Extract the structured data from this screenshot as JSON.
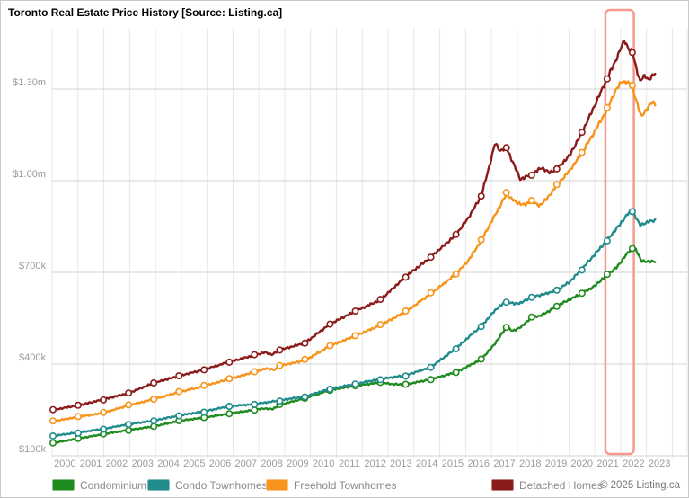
{
  "title": "Toronto Real Estate Price History [Source: Listing.ca]",
  "copyright": "© 2025 Listing.ca",
  "colors": {
    "background": "#ffffff",
    "frame_border": "#c9c9c9",
    "grid_vertical": "#e8e8e8",
    "grid_horizontal": "#d3d3d3",
    "axis_label": "#9b9b9b",
    "legend_text": "#898989",
    "title_text": "#000000",
    "highlight_box": "#f59a8e",
    "condominiums": "#1e8b1e",
    "condo_townhomes": "#208c8c",
    "freehold_townhomes": "#f8941c",
    "detached_homes": "#8b1b1b"
  },
  "legend": [
    {
      "label": "Condominiums",
      "color": "#1e8b1e"
    },
    {
      "label": "Condo Townhomes",
      "color": "#208c8c"
    },
    {
      "label": "Freehold Townhomes",
      "color": "#f8941c"
    },
    {
      "label": "Detached Homes",
      "color": "#8b1b1b"
    }
  ],
  "chart_data": {
    "type": "line",
    "title": "Toronto Real Estate Price History [Source: Listing.ca]",
    "unit": "average price in thousands of dollars",
    "years": [
      2000,
      2001,
      2002,
      2003,
      2004,
      2005,
      2006,
      2007,
      2008,
      2009,
      2010,
      2011,
      2012,
      2013,
      2014,
      2015,
      2016,
      2017,
      2018,
      2019,
      2020,
      2021,
      2022,
      2023
    ],
    "y_axis": {
      "tick_labels": [
        "$1.30m",
        "$1.00m",
        "$700k",
        "$400k",
        "$100k"
      ],
      "tick_values_k": [
        1300,
        1000,
        700,
        400,
        100
      ],
      "range_k": [
        100,
        1500
      ]
    },
    "x_axis": {
      "tick_labels": [
        "2000",
        "2001",
        "2002",
        "2003",
        "2004",
        "2005",
        "2006",
        "2007",
        "2008",
        "2009",
        "2010",
        "2011",
        "2012",
        "2013",
        "2014",
        "2015",
        "2016",
        "2017",
        "2018",
        "2019",
        "2020",
        "2021",
        "2022",
        "2023"
      ]
    },
    "grid": true,
    "legend_position": "bottom",
    "marker": "open-circle",
    "highlight_box": {
      "t_start": 21.93,
      "t_end": 23.06,
      "around_label": "2022"
    },
    "notable_values_k": {
      "detached_2017_spike": 1123,
      "detached_2022_peak": 1460,
      "freehold_2022_peak": 1325,
      "condo_townhome_2022_peak": 902,
      "condominium_2022_peak": 780
    },
    "series": [
      {
        "name": "Condominiums",
        "color": "#1e8b1e",
        "values_k": [
          142,
          156,
          171,
          184,
          196,
          214,
          225,
          238,
          250,
          267,
          288,
          315,
          329,
          340,
          333,
          350,
          373,
          415,
          520,
          554,
          590,
          631,
          692,
          780
        ],
        "detail_points_k": [
          [
            0,
            142
          ],
          [
            1,
            156
          ],
          [
            2,
            171
          ],
          [
            3,
            184
          ],
          [
            4,
            196
          ],
          [
            5,
            214
          ],
          [
            6,
            225
          ],
          [
            7,
            238
          ],
          [
            8,
            250
          ],
          [
            8.4,
            255
          ],
          [
            8.7,
            252
          ],
          [
            9,
            267
          ],
          [
            10,
            288
          ],
          [
            11,
            315
          ],
          [
            12,
            329
          ],
          [
            13,
            340
          ],
          [
            13.5,
            334
          ],
          [
            14,
            333
          ],
          [
            15,
            350
          ],
          [
            16,
            373
          ],
          [
            17,
            415
          ],
          [
            17.5,
            462
          ],
          [
            18,
            520
          ],
          [
            18.25,
            508
          ],
          [
            18.6,
            522
          ],
          [
            19,
            554
          ],
          [
            19.35,
            558
          ],
          [
            19.7,
            574
          ],
          [
            20,
            590
          ],
          [
            21,
            631
          ],
          [
            21.5,
            655
          ],
          [
            22,
            692
          ],
          [
            22.4,
            718
          ],
          [
            22.7,
            752
          ],
          [
            23,
            780
          ],
          [
            23.15,
            772
          ],
          [
            23.35,
            739
          ],
          [
            23.6,
            734
          ],
          [
            23.8,
            737
          ],
          [
            23.93,
            736
          ]
        ]
      },
      {
        "name": "Condo Townhomes",
        "color": "#208c8c",
        "values_k": [
          165,
          176,
          188,
          203,
          215,
          232,
          245,
          262,
          269,
          281,
          294,
          319,
          335,
          351,
          363,
          390,
          451,
          524,
          606,
          620,
          642,
          711,
          806,
          902
        ],
        "detail_points_k": [
          [
            0,
            165
          ],
          [
            1,
            176
          ],
          [
            2,
            188
          ],
          [
            3,
            203
          ],
          [
            4,
            215
          ],
          [
            5,
            232
          ],
          [
            6,
            245
          ],
          [
            7,
            262
          ],
          [
            8,
            269
          ],
          [
            9,
            281
          ],
          [
            10,
            294
          ],
          [
            11,
            319
          ],
          [
            12,
            335
          ],
          [
            13,
            351
          ],
          [
            14,
            363
          ],
          [
            15,
            390
          ],
          [
            16,
            451
          ],
          [
            16.5,
            488
          ],
          [
            17,
            524
          ],
          [
            17.6,
            580
          ],
          [
            18,
            606
          ],
          [
            18.3,
            597
          ],
          [
            18.6,
            601
          ],
          [
            19,
            620
          ],
          [
            19.5,
            628
          ],
          [
            20,
            642
          ],
          [
            20.5,
            668
          ],
          [
            21,
            711
          ],
          [
            21.5,
            758
          ],
          [
            22,
            806
          ],
          [
            22.5,
            856
          ],
          [
            22.8,
            890
          ],
          [
            23,
            902
          ],
          [
            23.3,
            855
          ],
          [
            23.5,
            861
          ],
          [
            23.7,
            867
          ],
          [
            23.93,
            871
          ]
        ]
      },
      {
        "name": "Freehold Townhomes",
        "color": "#f8941c",
        "values_k": [
          213,
          227,
          240,
          265,
          285,
          308,
          328,
          351,
          374,
          394,
          412,
          459,
          492,
          527,
          571,
          630,
          694,
          804,
          956,
          933,
          985,
          1091,
          1233,
          1307
        ],
        "detail_points_k": [
          [
            0,
            213
          ],
          [
            1,
            227
          ],
          [
            2,
            240
          ],
          [
            3,
            265
          ],
          [
            4,
            285
          ],
          [
            5,
            308
          ],
          [
            6,
            328
          ],
          [
            7,
            351
          ],
          [
            8,
            374
          ],
          [
            8.5,
            386
          ],
          [
            8.8,
            380
          ],
          [
            9,
            394
          ],
          [
            10,
            412
          ],
          [
            11,
            459
          ],
          [
            12,
            492
          ],
          [
            13,
            527
          ],
          [
            14,
            571
          ],
          [
            15,
            630
          ],
          [
            16,
            694
          ],
          [
            16.5,
            740
          ],
          [
            17,
            804
          ],
          [
            17.5,
            880
          ],
          [
            18,
            956
          ],
          [
            18.4,
            928
          ],
          [
            18.75,
            921
          ],
          [
            19,
            933
          ],
          [
            19.3,
            918
          ],
          [
            19.6,
            940
          ],
          [
            20,
            985
          ],
          [
            20.5,
            1032
          ],
          [
            21,
            1091
          ],
          [
            21.5,
            1160
          ],
          [
            22,
            1233
          ],
          [
            22.35,
            1298
          ],
          [
            22.6,
            1325
          ],
          [
            22.85,
            1320
          ],
          [
            23,
            1307
          ],
          [
            23.35,
            1209
          ],
          [
            23.6,
            1237
          ],
          [
            23.78,
            1256
          ],
          [
            23.93,
            1250
          ]
        ]
      },
      {
        "name": "Detached Homes",
        "color": "#8b1b1b",
        "values_k": [
          250,
          265,
          284,
          305,
          338,
          361,
          382,
          407,
          429,
          446,
          469,
          531,
          573,
          610,
          686,
          750,
          823,
          949,
          1108,
          1020,
          1037,
          1157,
          1335,
          1420
        ],
        "detail_points_k": [
          [
            0,
            250
          ],
          [
            1,
            265
          ],
          [
            2,
            284
          ],
          [
            3,
            305
          ],
          [
            4,
            338
          ],
          [
            5,
            361
          ],
          [
            6,
            382
          ],
          [
            7,
            407
          ],
          [
            8,
            429
          ],
          [
            8.4,
            438
          ],
          [
            8.7,
            431
          ],
          [
            9,
            446
          ],
          [
            10,
            469
          ],
          [
            11,
            531
          ],
          [
            12,
            573
          ],
          [
            13,
            610
          ],
          [
            14,
            686
          ],
          [
            15,
            750
          ],
          [
            16,
            823
          ],
          [
            16.5,
            880
          ],
          [
            17,
            949
          ],
          [
            17.3,
            1040
          ],
          [
            17.55,
            1123
          ],
          [
            17.75,
            1098
          ],
          [
            18,
            1108
          ],
          [
            18.25,
            1062
          ],
          [
            18.55,
            1005
          ],
          [
            18.8,
            1013
          ],
          [
            19,
            1020
          ],
          [
            19.4,
            1043
          ],
          [
            19.7,
            1026
          ],
          [
            20,
            1037
          ],
          [
            20.5,
            1082
          ],
          [
            21,
            1157
          ],
          [
            21.5,
            1245
          ],
          [
            22,
            1335
          ],
          [
            22.35,
            1395
          ],
          [
            22.68,
            1460
          ],
          [
            22.85,
            1432
          ],
          [
            23,
            1420
          ],
          [
            23.3,
            1325
          ],
          [
            23.5,
            1344
          ],
          [
            23.65,
            1330
          ],
          [
            23.93,
            1353
          ]
        ]
      }
    ]
  }
}
